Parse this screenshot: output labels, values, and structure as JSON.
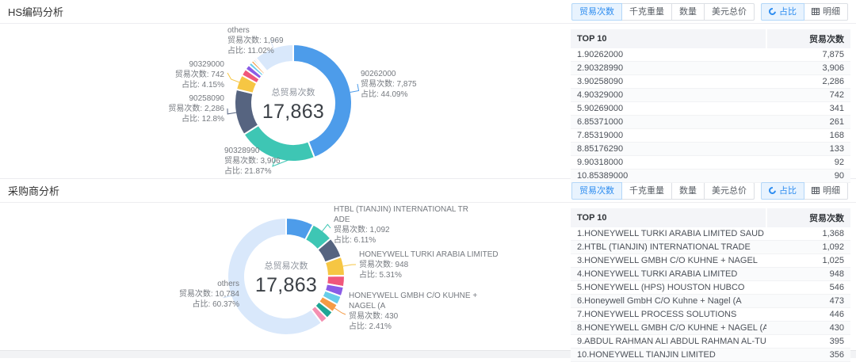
{
  "colors": {
    "accent": "#2c8cf0",
    "active_button_bg": "#e8f3fe",
    "palette": [
      "#4d9cea",
      "#3ec6b4",
      "#566480",
      "#f6c643",
      "#f0577b",
      "#8a5ce6",
      "#67cde9",
      "#f59b45",
      "#1ea594",
      "#f48fb1",
      "#d9e8fb"
    ]
  },
  "sections": [
    {
      "title": "HS编码分析",
      "toolbar": {
        "metrics": [
          {
            "label": "贸易次数",
            "active": true
          },
          {
            "label": "千克重量",
            "active": false
          },
          {
            "label": "数量",
            "active": false
          },
          {
            "label": "美元总价",
            "active": false
          }
        ],
        "views": [
          {
            "label": "占比",
            "icon": "donut-chart-icon",
            "active": true
          },
          {
            "label": "明细",
            "icon": "table-icon",
            "active": false
          }
        ]
      },
      "table": {
        "headers": [
          "TOP 10",
          "贸易次数"
        ],
        "rows": [
          {
            "label": "1.90262000",
            "value": "7,875"
          },
          {
            "label": "2.90328990",
            "value": "3,906"
          },
          {
            "label": "3.90258090",
            "value": "2,286"
          },
          {
            "label": "4.90329000",
            "value": "742"
          },
          {
            "label": "5.90269000",
            "value": "341"
          },
          {
            "label": "6.85371000",
            "value": "261"
          },
          {
            "label": "7.85319000",
            "value": "168"
          },
          {
            "label": "8.85176290",
            "value": "133"
          },
          {
            "label": "9.90318000",
            "value": "92"
          },
          {
            "label": "10.85389000",
            "value": "90"
          }
        ]
      }
    },
    {
      "title": "采购商分析",
      "toolbar": {
        "metrics": [
          {
            "label": "贸易次数",
            "active": true
          },
          {
            "label": "千克重量",
            "active": false
          },
          {
            "label": "数量",
            "active": false
          },
          {
            "label": "美元总价",
            "active": false
          }
        ],
        "views": [
          {
            "label": "占比",
            "icon": "donut-chart-icon",
            "active": true
          },
          {
            "label": "明细",
            "icon": "table-icon",
            "active": false
          }
        ]
      },
      "table": {
        "headers": [
          "TOP 10",
          "贸易次数"
        ],
        "rows": [
          {
            "label": "1.HONEYWELL TURKI ARABIA LIMITED SAUD",
            "value": "1,368"
          },
          {
            "label": "2.HTBL (TIANJIN) INTERNATIONAL TRADE",
            "value": "1,092"
          },
          {
            "label": "3.HONEYWELL GMBH C/O KUHNE + NAGEL",
            "value": "1,025"
          },
          {
            "label": "4.HONEYWELL TURKI ARABIA LIMITED",
            "value": "948"
          },
          {
            "label": "5.HONEYWELL (HPS) HOUSTON HUBCO",
            "value": "546"
          },
          {
            "label": "6.Honeywell GmbH C/O Kuhne + Nagel (A",
            "value": "473"
          },
          {
            "label": "7.HONEYWELL PROCESS SOLUTIONS",
            "value": "446"
          },
          {
            "label": "8.HONEYWELL GMBH C/O KUHNE + NAGEL (A",
            "value": "430"
          },
          {
            "label": "9.ABDUL RAHMAN ALI ABDUL RAHMAN AL-TU",
            "value": "395"
          },
          {
            "label": "10.HONEYWELL TIANJIN LIMITED",
            "value": "356"
          }
        ]
      }
    }
  ],
  "chart_data": [
    {
      "type": "pie",
      "donut": true,
      "center_title": "总贸易次数",
      "center_value": "17,863",
      "total": 17863,
      "count_prefix": "贸易次数: ",
      "pct_prefix": "占比: ",
      "segments": [
        {
          "name": "90262000",
          "value": 7875,
          "pct": "44.09%",
          "color": "#4d9cea"
        },
        {
          "name": "90328990",
          "value": 3906,
          "pct": "21.87%",
          "color": "#3ec6b4"
        },
        {
          "name": "90258090",
          "value": 2286,
          "pct": "12.8%",
          "color": "#566480"
        },
        {
          "name": "90329000",
          "value": 742,
          "pct": "4.15%",
          "color": "#f6c643"
        },
        {
          "name": "90269000",
          "value": 341,
          "color": "#f0577b"
        },
        {
          "name": "85371000",
          "value": 261,
          "color": "#8a5ce6"
        },
        {
          "name": "85319000",
          "value": 168,
          "color": "#67cde9"
        },
        {
          "name": "85176290",
          "value": 133,
          "color": "#f59b45"
        },
        {
          "name": "90318000",
          "value": 92,
          "color": "#1ea594"
        },
        {
          "name": "85389000",
          "value": 90,
          "color": "#f48fb1"
        },
        {
          "name": "others",
          "value": 1969,
          "pct": "11.02%",
          "color": "#d9e8fb"
        }
      ]
    },
    {
      "type": "pie",
      "donut": true,
      "center_title": "总贸易次数",
      "center_value": "17,863",
      "total": 17863,
      "count_prefix": "贸易次数: ",
      "pct_prefix": "占比: ",
      "segments": [
        {
          "name": "HONEYWELL TURKI ARABIA LIMITED SAUD",
          "value": 1368,
          "color": "#4d9cea"
        },
        {
          "name": "HTBL (TIANJIN) INTERNATIONAL TRADE",
          "value": 1092,
          "pct": "6.11%",
          "color": "#3ec6b4"
        },
        {
          "name": "HONEYWELL GMBH C/O KUHNE + NAGEL",
          "value": 1025,
          "color": "#566480"
        },
        {
          "name": "HONEYWELL TURKI ARABIA LIMITED",
          "value": 948,
          "pct": "5.31%",
          "color": "#f6c643"
        },
        {
          "name": "HONEYWELL (HPS) HOUSTON HUBCO",
          "value": 546,
          "color": "#f0577b"
        },
        {
          "name": "Honeywell GmbH C/O Kuhne + Nagel (A",
          "value": 473,
          "color": "#8a5ce6"
        },
        {
          "name": "HONEYWELL PROCESS SOLUTIONS",
          "value": 446,
          "color": "#67cde9"
        },
        {
          "name": "HONEYWELL GMBH C/O KUHNE + NAGEL (A",
          "value": 430,
          "pct": "2.41%",
          "color": "#f59b45"
        },
        {
          "name": "ABDUL RAHMAN ALI ABDUL RAHMAN AL-TU",
          "value": 395,
          "color": "#1ea594"
        },
        {
          "name": "HONEYWELL TIANJIN LIMITED",
          "value": 356,
          "color": "#f48fb1"
        },
        {
          "name": "others",
          "value": 10784,
          "pct": "60.37%",
          "color": "#d9e8fb"
        }
      ]
    }
  ]
}
